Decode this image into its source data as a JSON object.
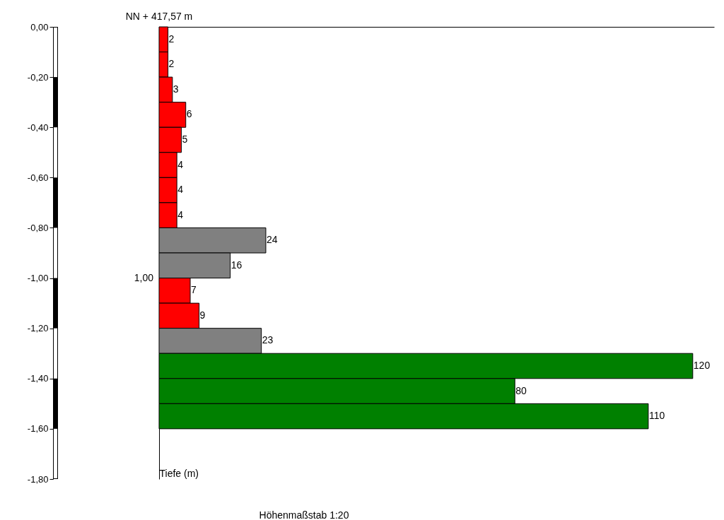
{
  "chart_data": {
    "type": "bar",
    "orientation": "horizontal",
    "x": [
      -0.05,
      -0.15,
      -0.25,
      -0.35,
      -0.45,
      -0.55,
      -0.65,
      -0.75,
      -0.85,
      -0.95,
      -1.05,
      -1.15,
      -1.25,
      -1.35,
      -1.45,
      -1.55
    ],
    "values": [
      2,
      2,
      3,
      6,
      5,
      4,
      4,
      4,
      24,
      16,
      7,
      9,
      23,
      120,
      80,
      110
    ],
    "colors": [
      "#ff0000",
      "#ff0000",
      "#ff0000",
      "#ff0000",
      "#ff0000",
      "#ff0000",
      "#ff0000",
      "#ff0000",
      "#808080",
      "#808080",
      "#ff0000",
      "#ff0000",
      "#808080",
      "#008000",
      "#008000",
      "#008000"
    ],
    "data_labels": true,
    "tick_labels": "y",
    "ylim": [
      -1.8,
      0
    ],
    "yticks": [
      {
        "value": 0,
        "label": "0,00"
      },
      {
        "value": -0.2,
        "label": "-0,20"
      },
      {
        "value": -0.4,
        "label": "-0,40"
      },
      {
        "value": -0.6,
        "label": "-0,60"
      },
      {
        "value": -0.8,
        "label": "-0,80"
      },
      {
        "value": -1.0,
        "label": "-1,00"
      },
      {
        "value": -1.2,
        "label": "-1,20"
      },
      {
        "value": -1.4,
        "label": "-1,40"
      },
      {
        "value": -1.6,
        "label": "-1,60"
      },
      {
        "value": -1.8,
        "label": "-1,80"
      }
    ],
    "ylabel": "Tiefe (m)",
    "annotations": [
      "NN + 417,57 m",
      "1,00",
      "Höhenmaßstab 1:20"
    ]
  }
}
